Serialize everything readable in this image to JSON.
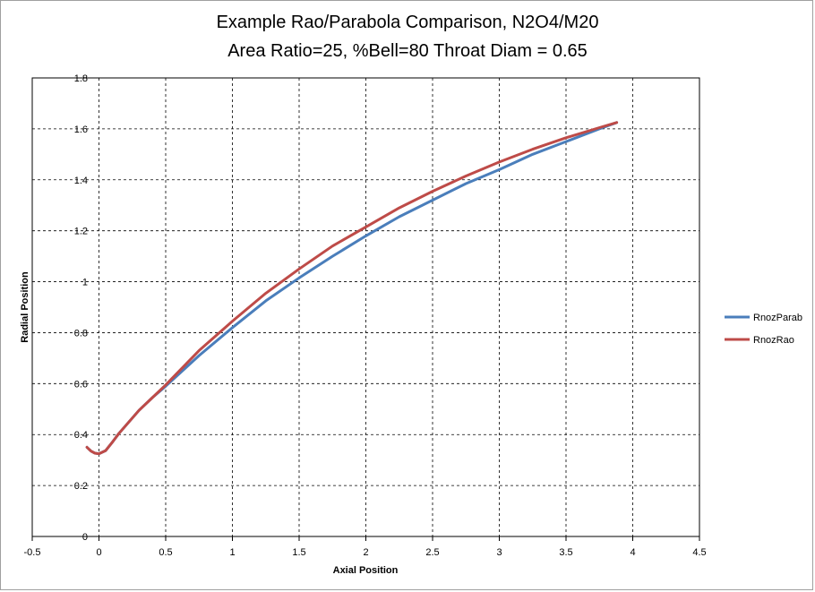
{
  "chart_data": {
    "type": "line",
    "title": "Example Rao/Parabola Comparison, N2O4/M20",
    "subtitle": "Area Ratio=25, %Bell=80 Throat Diam = 0.65",
    "xlabel": "Axial Position",
    "ylabel": "Radial Position",
    "xlim": [
      -0.5,
      4.5
    ],
    "ylim": [
      0,
      1.8
    ],
    "x_ticks": [
      "-0.5",
      "0",
      "0.5",
      "1",
      "1.5",
      "2",
      "2.5",
      "3",
      "3.5",
      "4",
      "4.5"
    ],
    "y_ticks": [
      "0",
      "0.2",
      "0.4",
      "0.6",
      "0.8",
      "1",
      "1.2",
      "1.4",
      "1.6",
      "1.8"
    ],
    "grid": true,
    "legend_position": "right",
    "series": [
      {
        "name": "RnozParab",
        "color": "#4a7ebb",
        "points": [
          [
            -0.09,
            0.35
          ],
          [
            -0.06,
            0.335
          ],
          [
            -0.03,
            0.327
          ],
          [
            0.0,
            0.325
          ],
          [
            0.05,
            0.337
          ],
          [
            0.1,
            0.37
          ],
          [
            0.15,
            0.405
          ],
          [
            0.2,
            0.435
          ],
          [
            0.3,
            0.495
          ],
          [
            0.4,
            0.545
          ],
          [
            0.5,
            0.59
          ],
          [
            0.75,
            0.71
          ],
          [
            1.0,
            0.82
          ],
          [
            1.25,
            0.925
          ],
          [
            1.5,
            1.015
          ],
          [
            1.75,
            1.1
          ],
          [
            2.0,
            1.18
          ],
          [
            2.25,
            1.255
          ],
          [
            2.5,
            1.32
          ],
          [
            2.75,
            1.385
          ],
          [
            3.0,
            1.44
          ],
          [
            3.25,
            1.5
          ],
          [
            3.5,
            1.55
          ],
          [
            3.75,
            1.6
          ],
          [
            3.88,
            1.625
          ]
        ]
      },
      {
        "name": "RnozRao",
        "color": "#be4b48",
        "points": [
          [
            -0.09,
            0.35
          ],
          [
            -0.06,
            0.335
          ],
          [
            -0.03,
            0.327
          ],
          [
            0.0,
            0.325
          ],
          [
            0.05,
            0.337
          ],
          [
            0.1,
            0.37
          ],
          [
            0.15,
            0.405
          ],
          [
            0.2,
            0.435
          ],
          [
            0.3,
            0.495
          ],
          [
            0.4,
            0.545
          ],
          [
            0.5,
            0.595
          ],
          [
            0.75,
            0.73
          ],
          [
            1.0,
            0.845
          ],
          [
            1.25,
            0.955
          ],
          [
            1.5,
            1.05
          ],
          [
            1.75,
            1.14
          ],
          [
            2.0,
            1.215
          ],
          [
            2.25,
            1.29
          ],
          [
            2.5,
            1.355
          ],
          [
            2.75,
            1.415
          ],
          [
            3.0,
            1.47
          ],
          [
            3.25,
            1.52
          ],
          [
            3.5,
            1.565
          ],
          [
            3.75,
            1.605
          ],
          [
            3.88,
            1.625
          ]
        ]
      }
    ]
  }
}
